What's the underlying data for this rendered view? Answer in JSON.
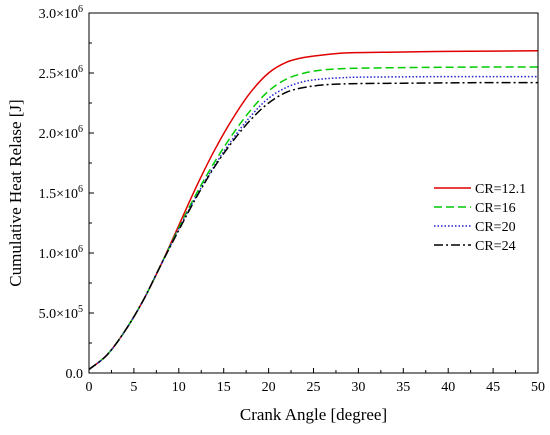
{
  "chart_data": {
    "type": "line",
    "title": "",
    "xlabel": "Crank Angle [degree]",
    "ylabel": "Cumulative Heat Relase [J]",
    "xlim": [
      0,
      50
    ],
    "ylim": [
      0,
      3000000
    ],
    "x_ticks": [
      0,
      5,
      10,
      15,
      20,
      25,
      30,
      35,
      40,
      45,
      50
    ],
    "x_tick_labels": [
      "0",
      "5",
      "10",
      "15",
      "20",
      "25",
      "30",
      "35",
      "40",
      "45",
      "50"
    ],
    "y_ticks": [
      0,
      500000,
      1000000,
      1500000,
      2000000,
      2500000,
      3000000
    ],
    "y_tick_labels": [
      {
        "mantissa": "0.0",
        "exp": ""
      },
      {
        "mantissa": "5.0×10",
        "exp": "5"
      },
      {
        "mantissa": "1.0×10",
        "exp": "6"
      },
      {
        "mantissa": "1.5×10",
        "exp": "6"
      },
      {
        "mantissa": "2.0×10",
        "exp": "6"
      },
      {
        "mantissa": "2.5×10",
        "exp": "6"
      },
      {
        "mantissa": "3.0×10",
        "exp": "6"
      }
    ],
    "grid": false,
    "legend_position": "right",
    "x": [
      0,
      2,
      4,
      6,
      8,
      10,
      12,
      14,
      16,
      18,
      20,
      22,
      24,
      26,
      28,
      30,
      35,
      40,
      45,
      50
    ],
    "series": [
      {
        "name": "CR=12.1",
        "color": "#e00000",
        "dash": "solid",
        "values": [
          30000,
          150000,
          350000,
          600000,
          900000,
          1230000,
          1560000,
          1860000,
          2120000,
          2340000,
          2500000,
          2590000,
          2630000,
          2650000,
          2665000,
          2670000,
          2675000,
          2680000,
          2682000,
          2685000
        ]
      },
      {
        "name": "CR=16",
        "color": "#00cc00",
        "dash": "dashed",
        "values": [
          30000,
          150000,
          350000,
          600000,
          900000,
          1210000,
          1500000,
          1760000,
          1990000,
          2190000,
          2350000,
          2450000,
          2500000,
          2525000,
          2535000,
          2540000,
          2545000,
          2548000,
          2550000,
          2550000
        ]
      },
      {
        "name": "CR=20",
        "color": "#2222cc",
        "dash": "dotted",
        "values": [
          30000,
          150000,
          350000,
          600000,
          900000,
          1200000,
          1480000,
          1730000,
          1950000,
          2140000,
          2290000,
          2380000,
          2430000,
          2450000,
          2460000,
          2465000,
          2468000,
          2470000,
          2470000,
          2470000
        ]
      },
      {
        "name": "CR=24",
        "color": "#000000",
        "dash": "dashdot",
        "values": [
          30000,
          150000,
          350000,
          600000,
          900000,
          1190000,
          1470000,
          1720000,
          1930000,
          2110000,
          2250000,
          2340000,
          2380000,
          2400000,
          2408000,
          2412000,
          2415000,
          2418000,
          2420000,
          2420000
        ]
      }
    ]
  }
}
